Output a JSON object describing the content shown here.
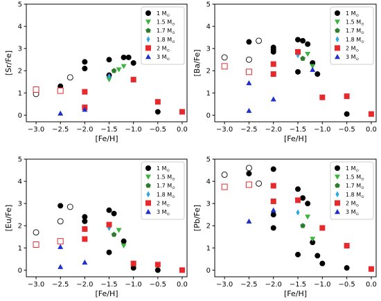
{
  "chart_data": [
    {
      "type": "scatter",
      "title": "",
      "xlabel": "[Fe/H]",
      "ylabel": "[Sr/Fe]",
      "xlim": [
        -3.2,
        0.1
      ],
      "ylim": [
        -0.3,
        5.0
      ],
      "xticks": [
        -3.0,
        -2.5,
        -2.0,
        -1.5,
        -1.0,
        -0.5,
        0.0
      ],
      "xtick_labels": [
        "−3.0",
        "−2.5",
        "−2.0",
        "−1.5",
        "−1.0",
        "−0.5",
        "0.0"
      ],
      "yticks": [
        0,
        1,
        2,
        3,
        4,
        5
      ],
      "ytick_labels": [
        "0",
        "1",
        "2",
        "3",
        "4",
        "5"
      ],
      "legend": "top-right",
      "series": [
        {
          "name": "1 M",
          "marker": "circle",
          "color": "#000000",
          "x": [
            -2.5,
            -2.0,
            -2.0,
            -1.5,
            -1.5,
            -1.2,
            -1.1,
            -1.0,
            -0.5
          ],
          "y": [
            1.3,
            2.4,
            2.1,
            1.8,
            2.5,
            2.6,
            2.6,
            2.35,
            0.15
          ]
        },
        {
          "name": "",
          "marker": "circle-open",
          "color": "#000000",
          "x": [
            -3.0,
            -2.3
          ],
          "y": [
            0.95,
            1.7
          ]
        },
        {
          "name": "1.5 M",
          "marker": "triangle-down",
          "color": "#3cb33c",
          "x": [
            -1.5,
            -1.3,
            -1.2
          ],
          "y": [
            1.6,
            2.05,
            2.2
          ]
        },
        {
          "name": "1.7 M",
          "marker": "pentagon",
          "color": "#2e7d2e",
          "x": [
            -1.4
          ],
          "y": [
            2.0
          ]
        },
        {
          "name": "1.8 M",
          "marker": "diamond",
          "color": "#2aa7e0",
          "x": [
            -1.5
          ],
          "y": [
            1.75
          ]
        },
        {
          "name": "2 M",
          "marker": "square",
          "color": "#e8292b",
          "x": [
            -2.0,
            -2.0,
            -1.0,
            -0.5,
            0.0
          ],
          "y": [
            1.05,
            0.35,
            1.6,
            0.6,
            0.15
          ]
        },
        {
          "name": "",
          "marker": "square-open",
          "color": "#e8292b",
          "x": [
            -3.0,
            -2.5
          ],
          "y": [
            1.15,
            1.1
          ]
        },
        {
          "name": "3 M",
          "marker": "triangle-up",
          "color": "#1f2fcc",
          "x": [
            -2.5,
            -2.0
          ],
          "y": [
            0.08,
            0.25
          ]
        }
      ]
    },
    {
      "type": "scatter",
      "title": "",
      "xlabel": "[Fe/H]",
      "ylabel": "[Ba/Fe]",
      "xlim": [
        -3.2,
        0.1
      ],
      "ylim": [
        -0.3,
        5.0
      ],
      "xticks": [
        -3.0,
        -2.5,
        -2.0,
        -1.5,
        -1.0,
        -0.5,
        0.0
      ],
      "xtick_labels": [
        "−3.0",
        "−2.5",
        "−2.0",
        "−1.5",
        "−1.0",
        "−0.5",
        "0.0"
      ],
      "yticks": [
        0,
        1,
        2,
        3,
        4,
        5
      ],
      "ytick_labels": [
        "0",
        "1",
        "2",
        "3",
        "4",
        "5"
      ],
      "legend": "top-right",
      "series": [
        {
          "name": "1 M",
          "marker": "circle",
          "color": "#000000",
          "x": [
            -2.5,
            -2.0,
            -2.0,
            -2.0,
            -1.5,
            -1.5,
            -1.4,
            -1.3,
            -1.2,
            -1.1,
            -0.5
          ],
          "y": [
            3.3,
            3.05,
            2.95,
            2.85,
            3.4,
            1.95,
            3.35,
            3.2,
            2.35,
            1.85,
            0.05
          ]
        },
        {
          "name": "",
          "marker": "circle-open",
          "color": "#000000",
          "x": [
            -3.0,
            -2.5,
            -2.3
          ],
          "y": [
            2.6,
            2.5,
            3.35
          ]
        },
        {
          "name": "1.5 M",
          "marker": "triangle-down",
          "color": "#3cb33c",
          "x": [
            -1.3,
            -1.2
          ],
          "y": [
            2.75,
            2.2
          ]
        },
        {
          "name": "1.7 M",
          "marker": "pentagon",
          "color": "#2e7d2e",
          "x": [
            -1.4
          ],
          "y": [
            2.55
          ]
        },
        {
          "name": "1.8 M",
          "marker": "diamond",
          "color": "#2aa7e0",
          "x": [
            -1.5
          ],
          "y": [
            2.7
          ]
        },
        {
          "name": "2 M",
          "marker": "square",
          "color": "#e8292b",
          "x": [
            -2.0,
            -2.0,
            -1.5,
            -1.0,
            -0.5,
            0.0
          ],
          "y": [
            2.3,
            1.85,
            2.85,
            0.8,
            0.85,
            0.05
          ]
        },
        {
          "name": "",
          "marker": "square-open",
          "color": "#e8292b",
          "x": [
            -3.0,
            -2.5
          ],
          "y": [
            2.2,
            1.95
          ]
        },
        {
          "name": "3 M",
          "marker": "triangle-up",
          "color": "#1f2fcc",
          "x": [
            -2.5,
            -2.5,
            -2.0,
            -1.2
          ],
          "y": [
            1.45,
            0.2,
            0.72,
            2.05
          ]
        }
      ]
    },
    {
      "type": "scatter",
      "title": "",
      "xlabel": "[Fe/H]",
      "ylabel": "[Eu/Fe]",
      "xlim": [
        -3.2,
        0.1
      ],
      "ylim": [
        -0.3,
        5.0
      ],
      "xticks": [
        -3.0,
        -2.5,
        -2.0,
        -1.5,
        -1.0,
        -0.5,
        0.0
      ],
      "xtick_labels": [
        "−3.0",
        "−2.5",
        "−2.0",
        "−1.5",
        "−1.0",
        "−0.5",
        "0.0"
      ],
      "yticks": [
        0,
        1,
        2,
        3,
        4,
        5
      ],
      "ytick_labels": [
        "0",
        "1",
        "2",
        "3",
        "4",
        "5"
      ],
      "legend": "top-right",
      "series": [
        {
          "name": "1 M",
          "marker": "circle",
          "color": "#000000",
          "x": [
            -2.5,
            -2.0,
            -2.0,
            -2.0,
            -1.5,
            -1.5,
            -1.4,
            -1.2,
            -1.0,
            -0.5
          ],
          "y": [
            2.9,
            2.4,
            2.2,
            1.85,
            2.7,
            0.8,
            2.55,
            1.3,
            0.1,
            0.0
          ]
        },
        {
          "name": "",
          "marker": "circle-open",
          "color": "#000000",
          "x": [
            -3.0,
            -2.5,
            -2.3
          ],
          "y": [
            1.7,
            2.2,
            2.85
          ]
        },
        {
          "name": "1.5 M",
          "marker": "triangle-down",
          "color": "#3cb33c",
          "x": [
            -1.3,
            -1.2
          ],
          "y": [
            1.8,
            1.1
          ]
        },
        {
          "name": "1.7 M",
          "marker": "pentagon",
          "color": "#2e7d2e",
          "x": [
            -1.4
          ],
          "y": [
            1.6
          ]
        },
        {
          "name": "1.8 M",
          "marker": "diamond",
          "color": "#2aa7e0",
          "x": [
            -1.5
          ],
          "y": [
            1.9
          ]
        },
        {
          "name": "2 M",
          "marker": "square",
          "color": "#e8292b",
          "x": [
            -2.0,
            -2.0,
            -1.5,
            -1.0,
            -0.5,
            0.0
          ],
          "y": [
            1.85,
            1.4,
            2.05,
            0.3,
            0.25,
            0.0
          ]
        },
        {
          "name": "",
          "marker": "square-open",
          "color": "#e8292b",
          "x": [
            -3.0,
            -2.5
          ],
          "y": [
            1.15,
            1.3
          ]
        },
        {
          "name": "3 M",
          "marker": "triangle-up",
          "color": "#1f2fcc",
          "x": [
            -2.5,
            -2.5,
            -2.0
          ],
          "y": [
            1.05,
            0.15,
            0.35
          ]
        }
      ]
    },
    {
      "type": "scatter",
      "title": "",
      "xlabel": "[Fe/H]",
      "ylabel": "[Pb/Fe]",
      "xlim": [
        -3.2,
        0.1
      ],
      "ylim": [
        -0.3,
        5.0
      ],
      "xticks": [
        -3.0,
        -2.5,
        -2.0,
        -1.5,
        -1.0,
        -0.5,
        0.0
      ],
      "xtick_labels": [
        "−3.0",
        "−2.5",
        "−2.0",
        "−1.5",
        "−1.0",
        "−0.5",
        "0.0"
      ],
      "yticks": [
        0,
        1,
        2,
        3,
        4,
        5
      ],
      "ytick_labels": [
        "0",
        "1",
        "2",
        "3",
        "4",
        "5"
      ],
      "legend": "top-right",
      "series": [
        {
          "name": "1 M",
          "marker": "circle",
          "color": "#000000",
          "x": [
            -2.5,
            -2.0,
            -2.0,
            -2.0,
            -1.5,
            -1.5,
            -1.4,
            -1.3,
            -1.2,
            -1.1,
            -1.0,
            -0.5
          ],
          "y": [
            4.35,
            4.55,
            2.5,
            1.9,
            3.65,
            0.7,
            3.25,
            3.0,
            1.25,
            0.65,
            0.3,
            0.1
          ]
        },
        {
          "name": "",
          "marker": "circle-open",
          "color": "#000000",
          "x": [
            -3.0,
            -2.5,
            -2.3
          ],
          "y": [
            4.3,
            4.6,
            3.9
          ]
        },
        {
          "name": "1.5 M",
          "marker": "triangle-down",
          "color": "#3cb33c",
          "x": [
            -1.3,
            -1.2
          ],
          "y": [
            2.4,
            1.4
          ]
        },
        {
          "name": "1.7 M",
          "marker": "pentagon",
          "color": "#2e7d2e",
          "x": [
            -1.4
          ],
          "y": [
            2.0
          ]
        },
        {
          "name": "1.8 M",
          "marker": "diamond",
          "color": "#2aa7e0",
          "x": [
            -1.5
          ],
          "y": [
            2.6
          ]
        },
        {
          "name": "2 M",
          "marker": "square",
          "color": "#e8292b",
          "x": [
            -2.0,
            -2.0,
            -1.5,
            -1.0,
            -0.5,
            0.0
          ],
          "y": [
            3.8,
            3.1,
            3.15,
            1.9,
            1.1,
            0.05
          ]
        },
        {
          "name": "",
          "marker": "square-open",
          "color": "#e8292b",
          "x": [
            -3.0,
            -2.5
          ],
          "y": [
            3.75,
            3.85
          ]
        },
        {
          "name": "3 M",
          "marker": "triangle-up",
          "color": "#1f2fcc",
          "x": [
            -2.5,
            -2.0
          ],
          "y": [
            2.2,
            2.7
          ]
        }
      ]
    }
  ],
  "legend_entries": [
    {
      "label": "1 M",
      "sub": "⊙",
      "marker": "circle",
      "color": "#000000"
    },
    {
      "label": "1.5 M",
      "sub": "⊙",
      "marker": "triangle-down",
      "color": "#3cb33c"
    },
    {
      "label": "1.7 M",
      "sub": "⊙",
      "marker": "pentagon",
      "color": "#2e7d2e"
    },
    {
      "label": "1.8 M",
      "sub": "⊙",
      "marker": "diamond",
      "color": "#2aa7e0"
    },
    {
      "label": "2 M",
      "sub": "⊙",
      "marker": "square",
      "color": "#e8292b"
    },
    {
      "label": "3 M",
      "sub": "⊙",
      "marker": "triangle-up",
      "color": "#1f2fcc"
    }
  ]
}
